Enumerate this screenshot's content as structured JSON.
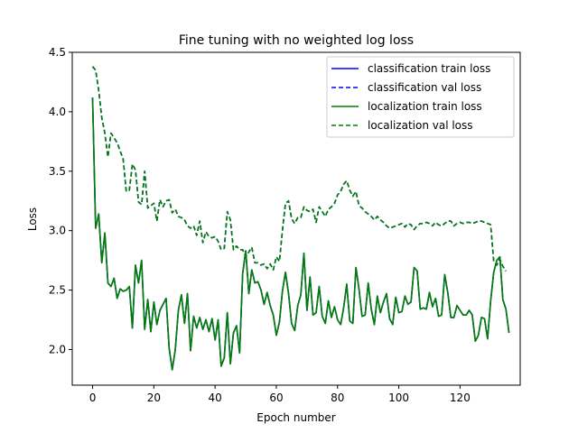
{
  "chart_data": {
    "type": "line",
    "title": "Fine tuning with no weighted log loss",
    "xlabel": "Epoch number",
    "ylabel": "Loss",
    "xlim": [
      -6.65,
      139.65
    ],
    "ylim": [
      1.7,
      4.5
    ],
    "xticks": [
      0,
      20,
      40,
      60,
      80,
      100,
      120
    ],
    "xtick_labels": [
      "0",
      "20",
      "40",
      "60",
      "80",
      "100",
      "120"
    ],
    "yticks": [
      2.0,
      2.5,
      3.0,
      3.5,
      4.0,
      4.5
    ],
    "ytick_labels": [
      "2.0",
      "2.5",
      "3.0",
      "3.5",
      "4.0",
      "4.5"
    ],
    "grid": false,
    "legend_position": "top-right",
    "legend": [
      "classification train loss",
      "classification val loss",
      "localization train loss",
      "localization val loss"
    ],
    "series": [
      {
        "name": "classification train loss",
        "color": "#0000ff",
        "dash": "solid",
        "values": [
          4.12,
          3.02,
          3.14,
          2.73,
          2.98,
          2.56,
          2.53,
          2.6,
          2.43,
          2.51,
          2.49,
          2.5,
          2.53,
          2.18,
          2.71,
          2.56,
          2.75,
          2.17,
          2.42,
          2.15,
          2.4,
          2.21,
          2.33,
          2.38,
          2.43,
          2.01,
          1.83,
          2.0,
          2.33,
          2.46,
          2.22,
          2.47,
          1.99,
          2.28,
          2.18,
          2.27,
          2.17,
          2.25,
          2.15,
          2.26,
          2.08,
          2.25,
          1.86,
          1.93,
          2.31,
          1.88,
          2.14,
          2.2,
          1.97,
          2.64,
          2.83,
          2.47,
          2.67,
          2.56,
          2.57,
          2.5,
          2.38,
          2.48,
          2.37,
          2.29,
          2.12,
          2.23,
          2.49,
          2.65,
          2.47,
          2.22,
          2.16,
          2.37,
          2.46,
          2.81,
          2.33,
          2.61,
          2.29,
          2.31,
          2.53,
          2.28,
          2.22,
          2.41,
          2.27,
          2.36,
          2.25,
          2.21,
          2.35,
          2.55,
          2.24,
          2.22,
          2.69,
          2.51,
          2.28,
          2.29,
          2.56,
          2.34,
          2.21,
          2.45,
          2.31,
          2.4,
          2.47,
          2.26,
          2.21,
          2.44,
          2.31,
          2.32,
          2.45,
          2.38,
          2.4,
          2.69,
          2.66,
          2.34,
          2.35,
          2.34,
          2.48,
          2.36,
          2.43,
          2.28,
          2.29,
          2.63,
          2.48,
          2.27,
          2.27,
          2.37,
          2.33,
          2.29,
          2.29,
          2.33,
          2.29,
          2.07,
          2.12,
          2.27,
          2.26,
          2.09,
          2.41,
          2.65,
          2.75,
          2.78,
          2.42,
          2.34,
          2.14
        ]
      },
      {
        "name": "classification val loss",
        "color": "#0000ff",
        "dash": "dashed",
        "values": [
          4.38,
          4.35,
          4.18,
          3.95,
          3.82,
          3.62,
          3.82,
          3.78,
          3.74,
          3.67,
          3.6,
          3.33,
          3.34,
          3.56,
          3.51,
          3.24,
          3.22,
          3.5,
          3.19,
          3.21,
          3.23,
          3.08,
          3.26,
          3.2,
          3.25,
          3.26,
          3.15,
          3.18,
          3.12,
          3.11,
          3.09,
          3.04,
          3.02,
          3.04,
          2.96,
          3.08,
          2.9,
          2.99,
          2.95,
          2.94,
          2.95,
          2.91,
          2.84,
          2.85,
          3.16,
          3.09,
          2.84,
          2.87,
          2.84,
          2.84,
          2.78,
          2.82,
          2.86,
          2.73,
          2.73,
          2.71,
          2.72,
          2.68,
          2.72,
          2.67,
          2.78,
          2.74,
          3.0,
          3.23,
          3.25,
          3.1,
          3.06,
          3.11,
          3.11,
          3.2,
          3.17,
          3.16,
          3.18,
          3.07,
          3.2,
          3.16,
          3.12,
          3.18,
          3.2,
          3.23,
          3.3,
          3.33,
          3.39,
          3.42,
          3.34,
          3.29,
          3.33,
          3.21,
          3.19,
          3.16,
          3.14,
          3.12,
          3.09,
          3.12,
          3.09,
          3.07,
          3.04,
          3.02,
          3.03,
          3.04,
          3.05,
          3.06,
          3.03,
          3.06,
          3.05,
          3.01,
          3.04,
          3.06,
          3.06,
          3.07,
          3.06,
          3.04,
          3.07,
          3.05,
          3.04,
          3.06,
          3.08,
          3.08,
          3.04,
          3.06,
          3.07,
          3.06,
          3.07,
          3.07,
          3.06,
          3.07,
          3.08,
          3.08,
          3.07,
          3.06,
          3.05,
          2.74,
          2.71,
          2.76,
          2.7,
          2.66
        ]
      },
      {
        "name": "localization train loss",
        "color": "#007f00",
        "dash": "solid",
        "values": [
          4.12,
          3.02,
          3.14,
          2.73,
          2.98,
          2.56,
          2.53,
          2.6,
          2.43,
          2.51,
          2.49,
          2.5,
          2.53,
          2.18,
          2.71,
          2.56,
          2.75,
          2.17,
          2.42,
          2.15,
          2.4,
          2.21,
          2.33,
          2.38,
          2.43,
          2.01,
          1.83,
          2.0,
          2.33,
          2.46,
          2.22,
          2.47,
          1.99,
          2.28,
          2.18,
          2.27,
          2.17,
          2.25,
          2.15,
          2.26,
          2.08,
          2.25,
          1.86,
          1.93,
          2.31,
          1.88,
          2.14,
          2.2,
          1.97,
          2.64,
          2.83,
          2.47,
          2.67,
          2.56,
          2.57,
          2.5,
          2.38,
          2.48,
          2.37,
          2.29,
          2.12,
          2.23,
          2.49,
          2.65,
          2.47,
          2.22,
          2.16,
          2.37,
          2.46,
          2.81,
          2.33,
          2.61,
          2.29,
          2.31,
          2.53,
          2.28,
          2.22,
          2.41,
          2.27,
          2.36,
          2.25,
          2.21,
          2.35,
          2.55,
          2.24,
          2.22,
          2.69,
          2.51,
          2.28,
          2.29,
          2.56,
          2.34,
          2.21,
          2.45,
          2.31,
          2.4,
          2.47,
          2.26,
          2.21,
          2.44,
          2.31,
          2.32,
          2.45,
          2.38,
          2.4,
          2.69,
          2.66,
          2.34,
          2.35,
          2.34,
          2.48,
          2.36,
          2.43,
          2.28,
          2.29,
          2.63,
          2.48,
          2.27,
          2.27,
          2.37,
          2.33,
          2.29,
          2.29,
          2.33,
          2.29,
          2.07,
          2.12,
          2.27,
          2.26,
          2.09,
          2.41,
          2.65,
          2.75,
          2.78,
          2.42,
          2.34,
          2.14
        ]
      },
      {
        "name": "localization val loss",
        "color": "#007f00",
        "dash": "dashed",
        "values": [
          4.38,
          4.35,
          4.18,
          3.95,
          3.82,
          3.62,
          3.82,
          3.78,
          3.74,
          3.67,
          3.6,
          3.33,
          3.34,
          3.56,
          3.51,
          3.24,
          3.22,
          3.5,
          3.19,
          3.21,
          3.23,
          3.08,
          3.26,
          3.2,
          3.25,
          3.26,
          3.15,
          3.18,
          3.12,
          3.11,
          3.09,
          3.04,
          3.02,
          3.04,
          2.96,
          3.08,
          2.9,
          2.99,
          2.95,
          2.94,
          2.95,
          2.91,
          2.84,
          2.85,
          3.16,
          3.09,
          2.84,
          2.87,
          2.84,
          2.84,
          2.78,
          2.82,
          2.86,
          2.73,
          2.73,
          2.71,
          2.72,
          2.68,
          2.72,
          2.67,
          2.78,
          2.74,
          3.0,
          3.23,
          3.25,
          3.1,
          3.06,
          3.11,
          3.11,
          3.2,
          3.17,
          3.16,
          3.18,
          3.07,
          3.2,
          3.16,
          3.12,
          3.18,
          3.2,
          3.23,
          3.3,
          3.33,
          3.39,
          3.42,
          3.34,
          3.29,
          3.33,
          3.21,
          3.19,
          3.16,
          3.14,
          3.12,
          3.09,
          3.12,
          3.09,
          3.07,
          3.04,
          3.02,
          3.03,
          3.04,
          3.05,
          3.06,
          3.03,
          3.06,
          3.05,
          3.01,
          3.04,
          3.06,
          3.06,
          3.07,
          3.06,
          3.04,
          3.07,
          3.05,
          3.04,
          3.06,
          3.08,
          3.08,
          3.04,
          3.06,
          3.07,
          3.06,
          3.07,
          3.07,
          3.06,
          3.07,
          3.08,
          3.08,
          3.07,
          3.06,
          3.05,
          2.74,
          2.71,
          2.76,
          2.7,
          2.66
        ]
      }
    ]
  }
}
